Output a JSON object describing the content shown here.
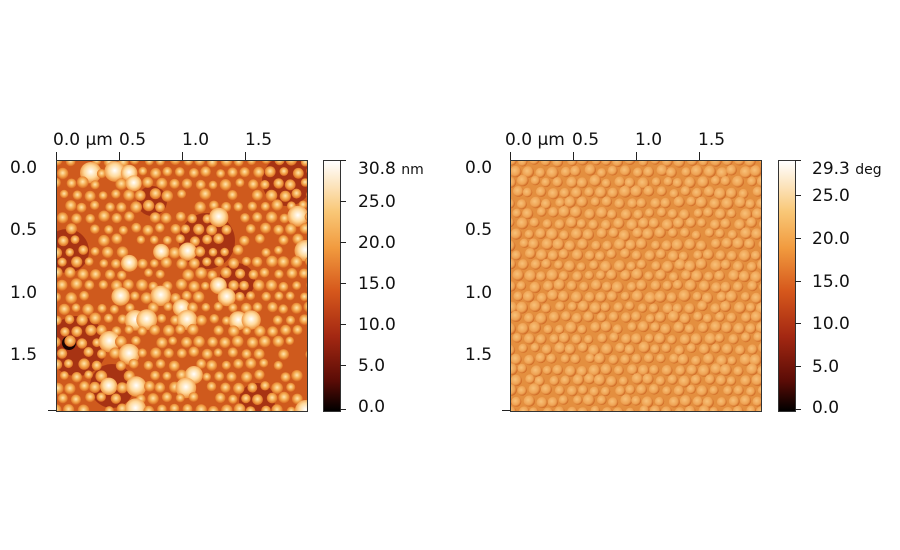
{
  "left_panel": {
    "x_ticks": [
      "0.0 µm",
      "0.5",
      "1.0",
      "1.5"
    ],
    "y_ticks": [
      "0.0",
      "0.5",
      "1.0",
      "1.5"
    ],
    "colorbar": {
      "max_label": "30.8",
      "unit": "nm",
      "ticks": [
        "25.0",
        "20.0",
        "15.0",
        "10.0",
        "5.0",
        "0.0"
      ]
    },
    "colors": {
      "low": "#000000",
      "mid": "#c8501a",
      "high": "#ffffff"
    }
  },
  "right_panel": {
    "x_ticks": [
      "0.0 µm",
      "0.5",
      "1.0",
      "1.5"
    ],
    "y_ticks": [
      "0.0",
      "0.5",
      "1.0",
      "1.5"
    ],
    "colorbar": {
      "max_label": "29.3",
      "unit": "deg",
      "ticks": [
        "25.0",
        "20.0",
        "15.0",
        "10.0",
        "5.0",
        "0.0"
      ]
    },
    "colors": {
      "low": "#000000",
      "mid": "#e08a3a",
      "high": "#ffffff"
    }
  }
}
